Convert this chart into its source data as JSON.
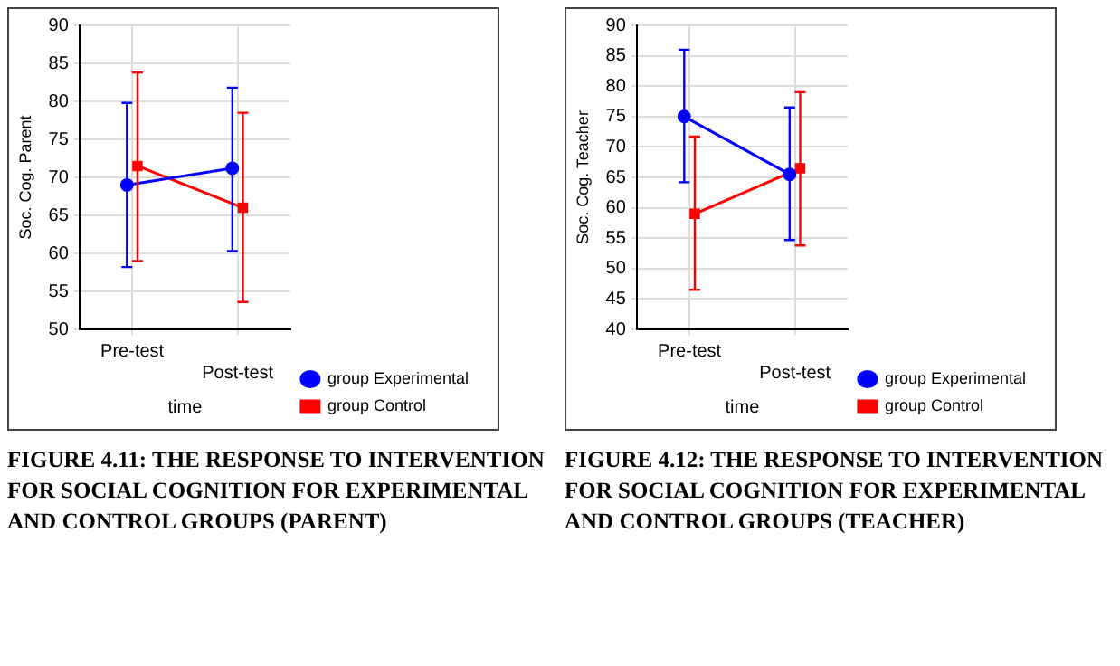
{
  "chart_data": [
    {
      "type": "line",
      "ylabel": "Soc. Cog. Parent",
      "xlabel": "time",
      "categories": [
        "Pre-test",
        "Post-test"
      ],
      "ylim": [
        50,
        90
      ],
      "yticks": [
        50,
        55,
        60,
        65,
        70,
        75,
        80,
        85,
        90
      ],
      "grid": true,
      "legend": "bottom right",
      "annotations": [
        "FIGURE 4.11: THE RESPONSE TO INTERVENTION FOR SOCIAL COGNITION FOR EXPERIMENTAL AND CONTROL GROUPS (PARENT)"
      ],
      "series": [
        {
          "name": "group Experimental",
          "color": "#0000ff",
          "marker": "circle",
          "values": [
            69,
            71.2
          ],
          "errors": [
            [
              58.2,
              79.8
            ],
            [
              60.3,
              81.8
            ]
          ]
        },
        {
          "name": "group Control",
          "color": "#ff0000",
          "marker": "square",
          "values": [
            71.5,
            66
          ],
          "errors": [
            [
              59,
              83.8
            ],
            [
              53.6,
              78.5
            ]
          ]
        }
      ]
    },
    {
      "type": "line",
      "ylabel": "Soc. Cog. Teacher",
      "xlabel": "time",
      "categories": [
        "Pre-test",
        "Post-test"
      ],
      "ylim": [
        40,
        90
      ],
      "yticks": [
        40,
        45,
        50,
        55,
        60,
        65,
        70,
        75,
        80,
        85,
        90
      ],
      "grid": true,
      "legend": "bottom right",
      "annotations": [
        "FIGURE 4.12: THE RESPONSE TO INTERVENTION FOR SOCIAL COGNITION FOR EXPERIMENTAL AND CONTROL GROUPS (TEACHER)"
      ],
      "series": [
        {
          "name": "group Experimental",
          "color": "#0000ff",
          "marker": "circle",
          "values": [
            75,
            65.5
          ],
          "errors": [
            [
              64.2,
              86
            ],
            [
              54.7,
              76.5
            ]
          ]
        },
        {
          "name": "group Control",
          "color": "#ff0000",
          "marker": "square",
          "values": [
            59,
            66.5
          ],
          "errors": [
            [
              46.5,
              71.7
            ],
            [
              53.8,
              79
            ]
          ]
        }
      ]
    }
  ]
}
